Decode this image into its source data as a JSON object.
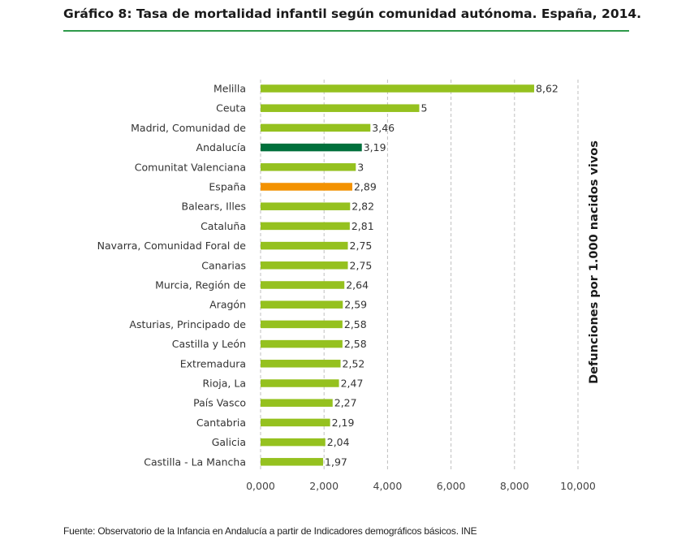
{
  "title": "Gráfico 8: Tasa de mortalidad infantil según comunidad autónoma. España, 2014.",
  "source": "Fuente: Observatorio de la Infancia en Andalucía a partir de Indicadores demográficos básicos. INE",
  "colors": {
    "default": "#95c11f",
    "andalucia": "#00703c",
    "espana": "#f39200",
    "rule": "#2e9a4a",
    "grid": "#bfbfbf"
  },
  "chart_data": {
    "type": "bar",
    "orientation": "horizontal",
    "title": "Gráfico 8: Tasa de mortalidad infantil según comunidad autónoma. España, 2014.",
    "xlabel": "",
    "ylabel": "Defunciones por 1.000 nacidos vivos",
    "xlim": [
      0,
      10
    ],
    "xticks": [
      "0,000",
      "2,000",
      "4,000",
      "6,000",
      "8,000",
      "10,000"
    ],
    "grid": "vertical-dashed",
    "categories": [
      "Melilla",
      "Ceuta",
      "Madrid, Comunidad de",
      "Andalucía",
      "Comunitat Valenciana",
      "España",
      "Balears, Illes",
      "Cataluña",
      "Navarra, Comunidad Foral de",
      "Canarias",
      "Murcia, Región de",
      "Aragón",
      "Asturias, Principado de",
      "Castilla y León",
      "Extremadura",
      "Rioja, La",
      "País Vasco",
      "Cantabria",
      "Galicia",
      "Castilla - La Mancha"
    ],
    "values": [
      8.62,
      5,
      3.46,
      3.19,
      3,
      2.89,
      2.82,
      2.81,
      2.75,
      2.75,
      2.64,
      2.59,
      2.58,
      2.58,
      2.52,
      2.47,
      2.27,
      2.19,
      2.04,
      1.97
    ],
    "labels": [
      "8,62",
      "5",
      "3,46",
      "3,19",
      "3",
      "2,89",
      "2,82",
      "2,81",
      "2,75",
      "2,75",
      "2,64",
      "2,59",
      "2,58",
      "2,58",
      "2,52",
      "2,47",
      "2,27",
      "2,19",
      "2,04",
      "1,97"
    ],
    "bar_colors": [
      "default",
      "default",
      "default",
      "andalucia",
      "default",
      "espana",
      "default",
      "default",
      "default",
      "default",
      "default",
      "default",
      "default",
      "default",
      "default",
      "default",
      "default",
      "default",
      "default",
      "default"
    ]
  }
}
